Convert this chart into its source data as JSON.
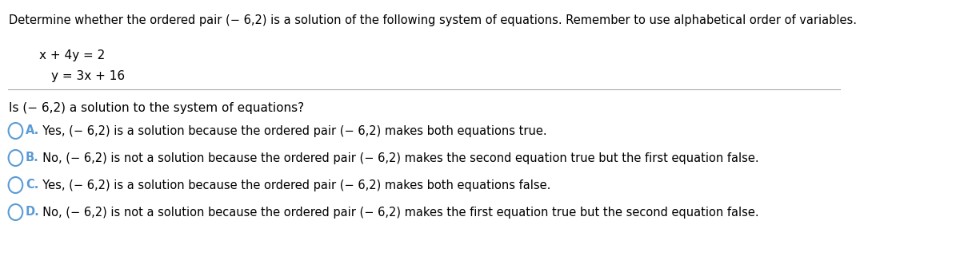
{
  "bg_color": "#ffffff",
  "title_text": "Determine whether the ordered pair (− 6,2) is a solution of the following system of equations. Remember to use alphabetical order of variables.",
  "eq1": "x + 4y = 2",
  "eq2": "y = 3x + 16",
  "question": "Is (− 6,2) a solution to the system of equations?",
  "options": [
    {
      "letter": "A.",
      "text": "  Yes, (− 6,2) is a solution because the ordered pair (− 6,2) makes both equations true."
    },
    {
      "letter": "B.",
      "text": "  No, (− 6,2) is not a solution because the ordered pair (− 6,2) makes the second equation true but the first equation false."
    },
    {
      "letter": "C.",
      "text": "  Yes, (− 6,2) is a solution because the ordered pair (− 6,2) makes both equations false."
    },
    {
      "letter": "D.",
      "text": "  No, (− 6,2) is not a solution because the ordered pair (− 6,2) makes the first equation true but the second equation false."
    }
  ],
  "title_fontsize": 10.5,
  "eq_fontsize": 11,
  "question_fontsize": 11,
  "option_fontsize": 10.5,
  "text_color": "#000000",
  "circle_color": "#5b9bd5",
  "line_color": "#aaaaaa"
}
